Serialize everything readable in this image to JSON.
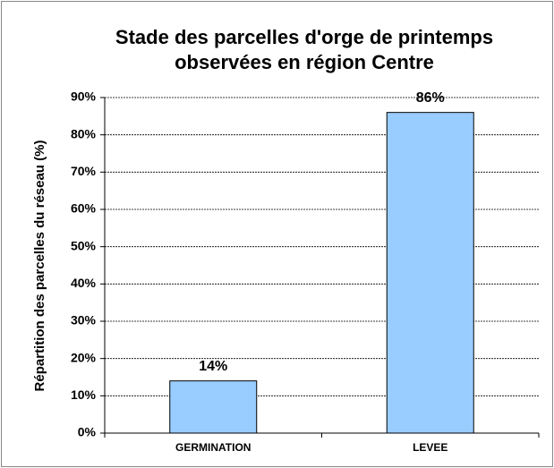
{
  "chart_data": {
    "type": "bar",
    "title": "Stade des parcelles d'orge de printemps observées en région Centre",
    "y_label": "Répartition des parcelles du réseau (%)",
    "categories": [
      "GERMINATION",
      "LEVEE"
    ],
    "values": [
      14,
      86
    ],
    "value_labels": [
      "14%",
      "86%"
    ],
    "color": "#99ccff",
    "ylim": [
      0,
      90
    ],
    "yticks": [
      {
        "value": 0,
        "label": "0%"
      },
      {
        "value": 10,
        "label": "10%"
      },
      {
        "value": 20,
        "label": "20%"
      },
      {
        "value": 30,
        "label": "30%"
      },
      {
        "value": 40,
        "label": "40%"
      },
      {
        "value": 50,
        "label": "50%"
      },
      {
        "value": 60,
        "label": "60%"
      },
      {
        "value": 70,
        "label": "70%"
      },
      {
        "value": 80,
        "label": "80%"
      },
      {
        "value": 90,
        "label": "90%"
      }
    ],
    "grid": true
  }
}
